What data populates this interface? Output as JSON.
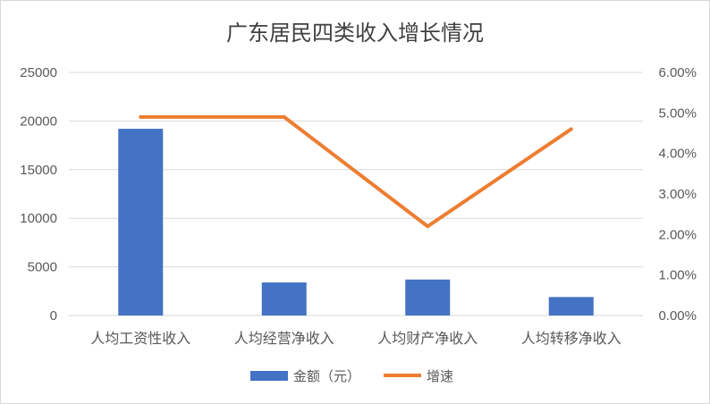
{
  "chart_data": {
    "type": "bar+line",
    "title": "广东居民四类收入增长情况",
    "categories": [
      "人均工资性收入",
      "人均经营净收入",
      "人均财产净收入",
      "人均转移净收入"
    ],
    "series": [
      {
        "name": "金额（元）",
        "type": "bar",
        "axis": "left",
        "color": "#4472C4",
        "values": [
          19200,
          3400,
          3700,
          1900
        ]
      },
      {
        "name": "增速",
        "type": "line",
        "axis": "right",
        "color": "#ED7D31",
        "values": [
          0.049,
          0.049,
          0.022,
          0.046
        ]
      }
    ],
    "y_left": {
      "lim": [
        0,
        25000
      ],
      "ticks": [
        "0",
        "5000",
        "10000",
        "15000",
        "20000",
        "25000"
      ]
    },
    "y_right": {
      "lim": [
        0,
        0.06
      ],
      "ticks": [
        "0.00%",
        "1.00%",
        "2.00%",
        "3.00%",
        "4.00%",
        "5.00%",
        "6.00%"
      ]
    },
    "grid": true,
    "legend_position": "bottom"
  }
}
